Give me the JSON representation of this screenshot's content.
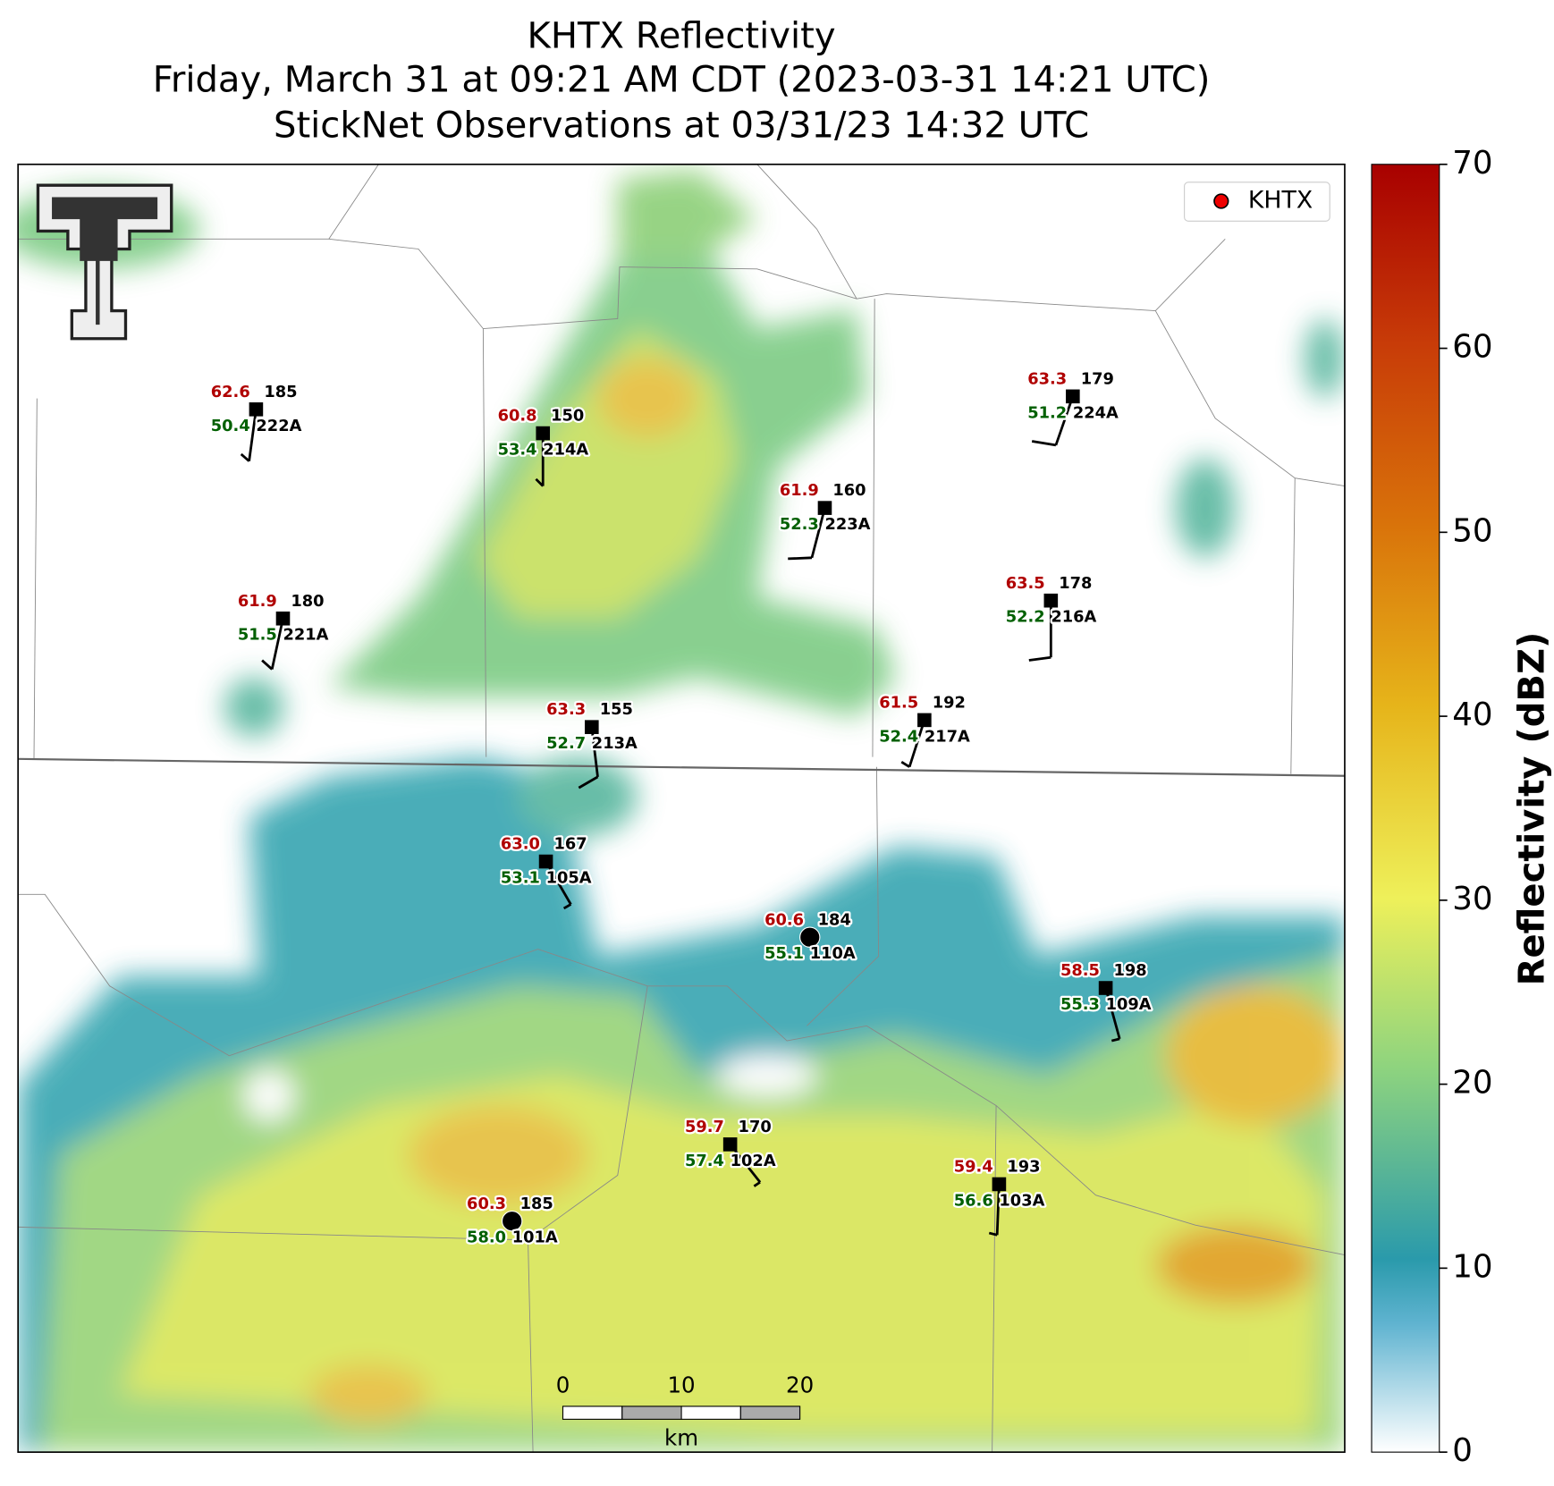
{
  "header": {
    "title": [
      "KHTX Reflectivity",
      "Friday, March 31 at 09:21 AM CDT (2023-03-31 14:21 UTC)",
      "StickNet Observations at 03/31/23 14:32 UTC"
    ]
  },
  "legend": {
    "label": "KHTX"
  },
  "colorbar": {
    "label": "Reflectivity (dBZ)",
    "lim": [
      0,
      70
    ],
    "ticks": [
      0,
      10,
      20,
      30,
      40,
      50,
      60,
      70
    ]
  },
  "scale_bar": {
    "ticks": [
      0,
      10,
      20
    ],
    "unit": "km"
  },
  "stations": [
    {
      "id": "222A",
      "temperature": "62.6",
      "dewpoint": "50.4",
      "value": "185"
    },
    {
      "id": "214A",
      "temperature": "60.8",
      "dewpoint": "53.4",
      "value": "150"
    },
    {
      "id": "224A",
      "temperature": "63.3",
      "dewpoint": "51.2",
      "value": "179"
    },
    {
      "id": "223A",
      "temperature": "61.9",
      "dewpoint": "52.3",
      "value": "160"
    },
    {
      "id": "221A",
      "temperature": "61.9",
      "dewpoint": "51.5",
      "value": "180"
    },
    {
      "id": "216A",
      "temperature": "63.5",
      "dewpoint": "52.2",
      "value": "178"
    },
    {
      "id": "213A",
      "temperature": "63.3",
      "dewpoint": "52.7",
      "value": "155"
    },
    {
      "id": "217A",
      "temperature": "61.5",
      "dewpoint": "52.4",
      "value": "192"
    },
    {
      "id": "105A",
      "temperature": "63.0",
      "dewpoint": "53.1",
      "value": "167"
    },
    {
      "id": "110A",
      "temperature": "60.6",
      "dewpoint": "55.1",
      "value": "184"
    },
    {
      "id": "109A",
      "temperature": "58.5",
      "dewpoint": "55.3",
      "value": "198"
    },
    {
      "id": "102A",
      "temperature": "59.7",
      "dewpoint": "57.4",
      "value": "170"
    },
    {
      "id": "103A",
      "temperature": "59.4",
      "dewpoint": "56.6",
      "value": "193"
    },
    {
      "id": "101A",
      "temperature": "60.3",
      "dewpoint": "58.0",
      "value": "185"
    }
  ]
}
